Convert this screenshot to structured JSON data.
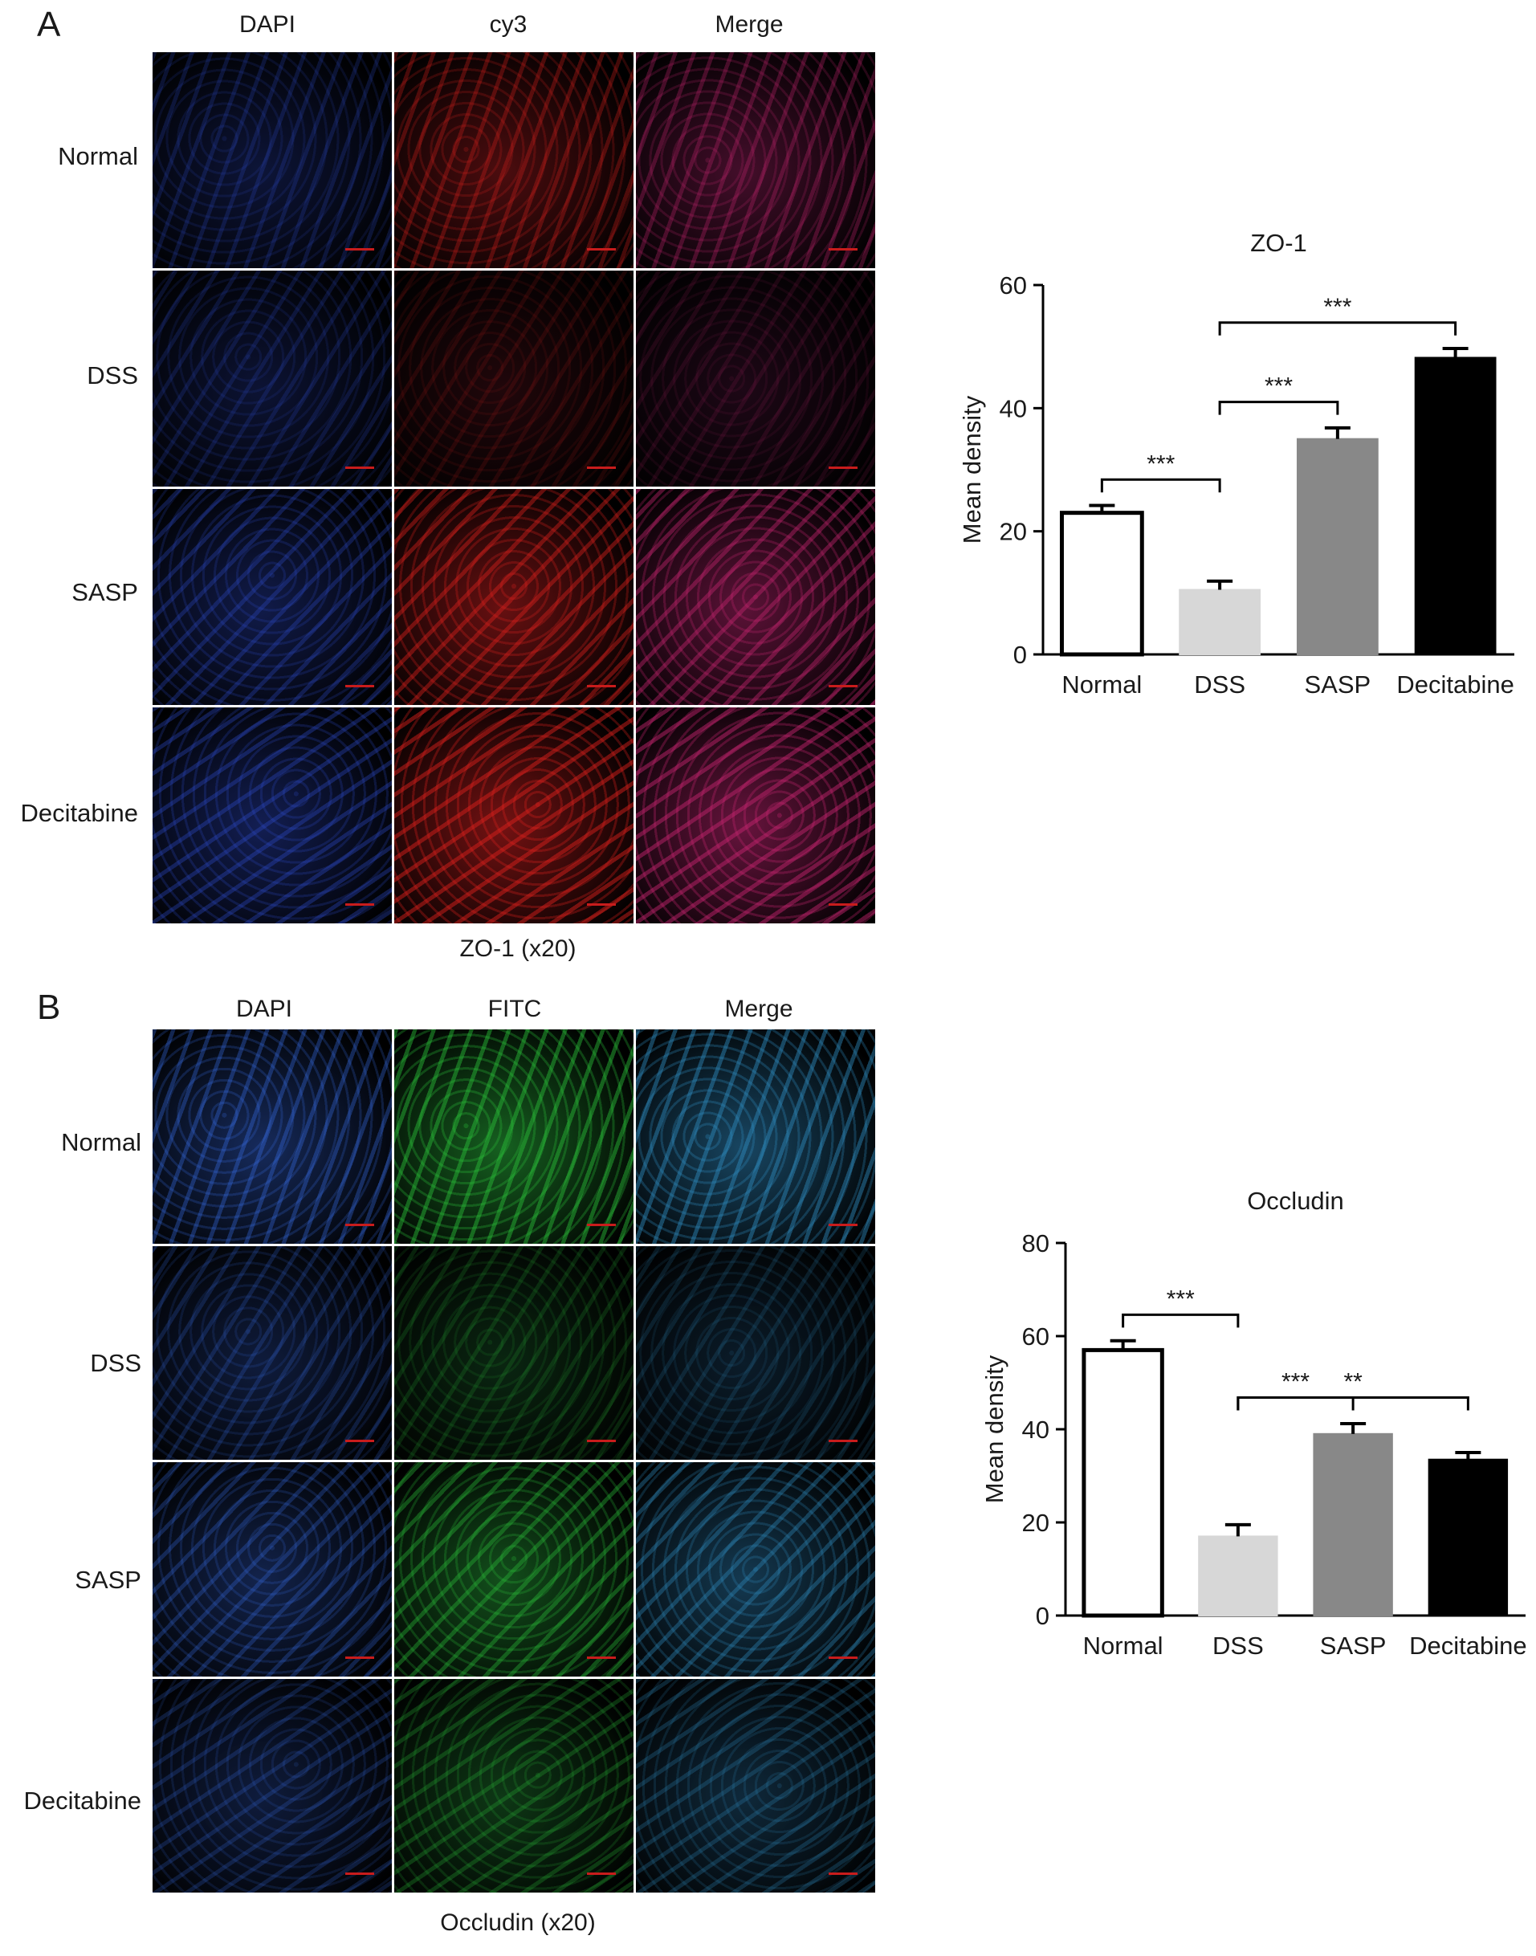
{
  "panels": [
    {
      "letter": "A",
      "channels": [
        "DAPI",
        "cy3",
        "Merge"
      ],
      "rows": [
        "Normal",
        "DSS",
        "SASP",
        "Decitabine"
      ],
      "caption": "ZO-1 (x20)",
      "intensities": [
        0.55,
        0.22,
        0.75,
        0.85
      ],
      "colors": {
        "dapi": "#2f4fd8",
        "stain": "#e0201c",
        "merge": "#c72470",
        "scale": "#c81c1c"
      }
    },
    {
      "letter": "B",
      "channels": [
        "DAPI",
        "FITC",
        "Merge"
      ],
      "rows": [
        "Normal",
        "DSS",
        "SASP",
        "Decitabine"
      ],
      "caption": "Occludin (x20)",
      "intensities": [
        0.8,
        0.3,
        0.65,
        0.45
      ],
      "colors": {
        "dapi": "#3c78ff",
        "stain": "#2bc63a",
        "merge": "#2f8fc4",
        "scale": "#c81c1c"
      }
    }
  ],
  "chart_data": [
    {
      "type": "bar",
      "title": "ZO-1",
      "ylabel": "Mean density",
      "xlabel": "",
      "categories": [
        "Normal",
        "DSS",
        "SASP",
        "Decitabine"
      ],
      "values": [
        23,
        10.5,
        35,
        48.2
      ],
      "errors": [
        1.2,
        1.4,
        1.8,
        1.5
      ],
      "ylim": [
        0,
        60
      ],
      "yticks": [
        0,
        20,
        40,
        60
      ],
      "bar_colors": [
        "#ffffff",
        "#d7d7d7",
        "#888888",
        "#000000"
      ],
      "significance": [
        {
          "from": 0,
          "to": 1,
          "label": "***"
        },
        {
          "from": 1,
          "to": 2,
          "label": "***"
        },
        {
          "from": 1,
          "to": 3,
          "label": "***"
        }
      ]
    },
    {
      "type": "bar",
      "title": "Occludin",
      "ylabel": "Mean density",
      "xlabel": "",
      "categories": [
        "Normal",
        "DSS",
        "SASP",
        "Decitabine"
      ],
      "values": [
        57,
        17,
        39,
        33.5
      ],
      "errors": [
        2,
        2.5,
        2.2,
        1.5
      ],
      "ylim": [
        0,
        80
      ],
      "yticks": [
        0,
        20,
        40,
        60,
        80
      ],
      "bar_colors": [
        "#ffffff",
        "#d7d7d7",
        "#888888",
        "#000000"
      ],
      "significance": [
        {
          "from": 0,
          "to": 1,
          "label": "***"
        },
        {
          "from": 1,
          "to": 2,
          "label": "***"
        },
        {
          "from": 1,
          "to": 3,
          "label": "**"
        }
      ]
    }
  ]
}
